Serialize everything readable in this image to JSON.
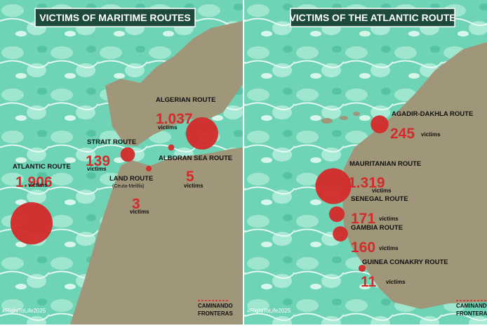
{
  "panels": [
    {
      "title": "VICTIMS OF MARITIME ROUTES",
      "routes": [
        {
          "name": "ATLANTIC ROUTE",
          "value": 1906,
          "value_label": "1.906",
          "unit": "victims"
        },
        {
          "name": "STRAIT ROUTE",
          "value": 139,
          "value_label": "139",
          "unit": "victims"
        },
        {
          "name": "ALGERIAN ROUTE",
          "value": 1037,
          "value_label": "1.037",
          "unit": "victims"
        },
        {
          "name": "ALBORAN SEA ROUTE",
          "value": 5,
          "value_label": "5",
          "unit": "victims"
        },
        {
          "name": "LAND ROUTE",
          "note": "(Ceuta-Melilla)",
          "value": 3,
          "value_label": "3",
          "unit": "victims"
        }
      ],
      "hashtag": "#RightToLife2025",
      "logo": [
        "CAMINANDO",
        "FRONTERAS"
      ]
    },
    {
      "title": "VICTIMS OF THE ATLANTIC ROUTE",
      "routes": [
        {
          "name": "AGADIR-DAKHLA ROUTE",
          "value": 245,
          "value_label": "245",
          "unit": "victims"
        },
        {
          "name": "MAURITANIAN ROUTE",
          "value": 1319,
          "value_label": "1.319",
          "unit": "victims"
        },
        {
          "name": "SENEGAL ROUTE",
          "value": 171,
          "value_label": "171",
          "unit": "victims"
        },
        {
          "name": "GAMBIA ROUTE",
          "value": 160,
          "value_label": "160",
          "unit": "victims"
        },
        {
          "name": "GUINEA CONAKRY ROUTE",
          "value": 11,
          "value_label": "11",
          "unit": "victims"
        }
      ],
      "hashtag": "#RightToLife2025",
      "logo": [
        "CAMINANDO",
        "FRONTERAS"
      ]
    }
  ]
}
